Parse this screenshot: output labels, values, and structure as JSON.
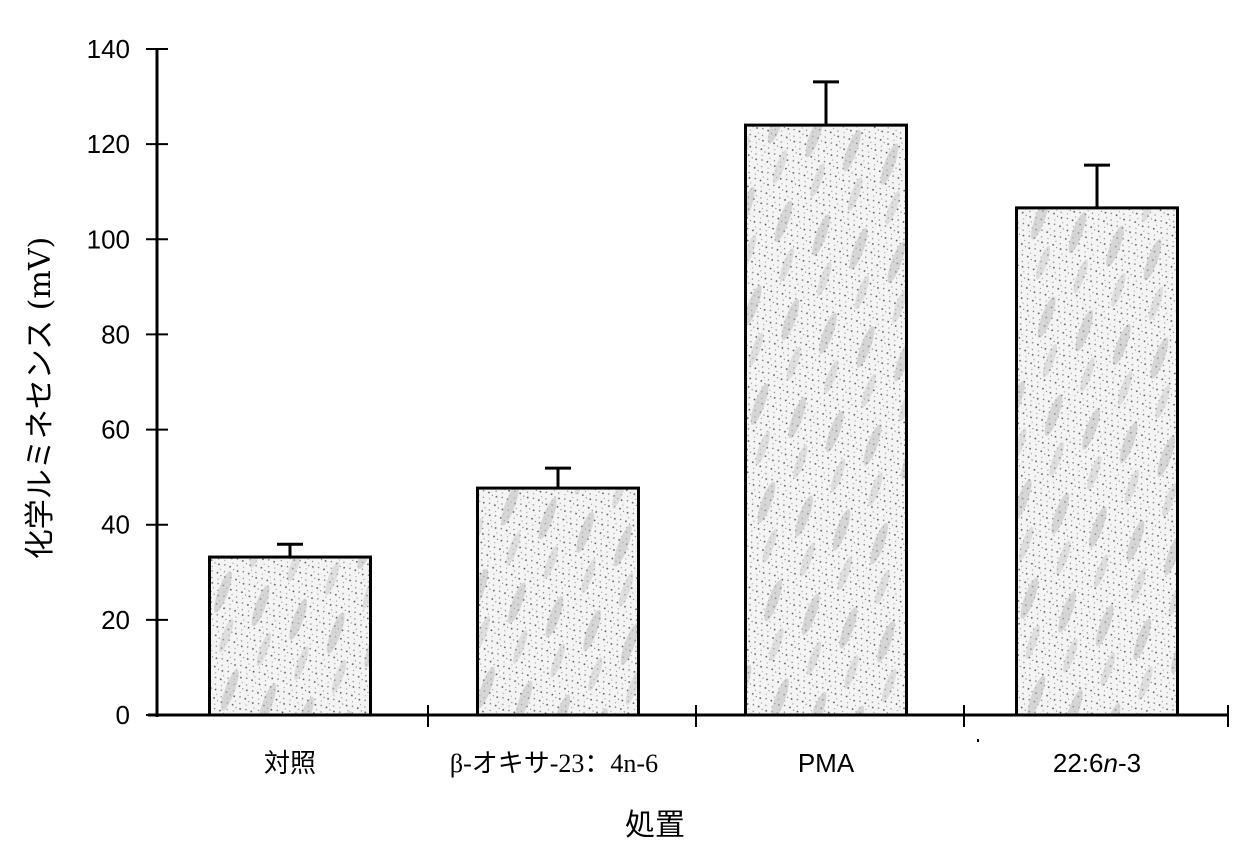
{
  "chart_data": {
    "type": "bar",
    "title": "",
    "xlabel": "処置",
    "ylabel": "化学ルミネセンス (mV)",
    "categories": [
      "対照",
      "β-オキサ-23：4n-6",
      "PMA",
      "22:6n-3"
    ],
    "values": [
      33.2,
      47.7,
      124.0,
      106.6
    ],
    "error_bars_upper": [
      2.7,
      4.2,
      9.1,
      9.0
    ],
    "ylim": [
      0,
      140
    ],
    "yticks": [
      0,
      20,
      40,
      60,
      80,
      100,
      120,
      140
    ],
    "grid": false,
    "legend": null,
    "bar_fill": "stippled gray texture",
    "bar_edge_color": "#000000"
  },
  "axes": {
    "x_title": "処置",
    "y_title": "化学ルミネセンス (mV)",
    "y_tick_labels": [
      "0",
      "20",
      "40",
      "60",
      "80",
      "100",
      "120",
      "140"
    ],
    "x_tick_labels": [
      "対照",
      "β-オキサ-23：4n-6",
      "PMA",
      "22:6n-3"
    ]
  }
}
